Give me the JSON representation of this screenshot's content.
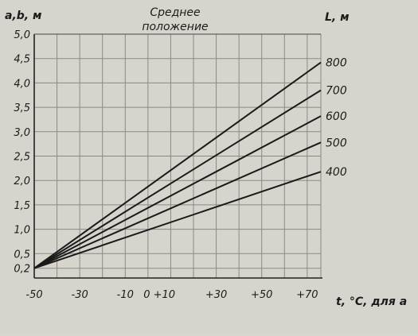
{
  "chart_data": {
    "type": "line",
    "y_axis_label": "a,b, м",
    "x_axis_label": "t, °C, для а",
    "series_axis_label": "L, м",
    "annotation": "Среднее положение",
    "x_range": [
      -50,
      76
    ],
    "y_range": [
      0,
      5.0
    ],
    "x_ticks": [
      "-50",
      "-30",
      "-10",
      "0 +10",
      "+30",
      "+50",
      "+70"
    ],
    "y_ticks": [
      "0,2",
      "0,5",
      "1,0",
      "1,5",
      "2,0",
      "2,5",
      "3,0",
      "3,5",
      "4,0",
      "4,5",
      "5,0"
    ],
    "grid": true,
    "series": [
      {
        "name": "800",
        "x": [
          -50,
          76
        ],
        "y": [
          0.2,
          4.42
        ]
      },
      {
        "name": "700",
        "x": [
          -50,
          76
        ],
        "y": [
          0.2,
          3.85
        ]
      },
      {
        "name": "600",
        "x": [
          -50,
          76
        ],
        "y": [
          0.2,
          3.32
        ]
      },
      {
        "name": "500",
        "x": [
          -50,
          76
        ],
        "y": [
          0.2,
          2.78
        ]
      },
      {
        "name": "400",
        "x": [
          -50,
          76
        ],
        "y": [
          0.2,
          2.18
        ]
      }
    ]
  }
}
